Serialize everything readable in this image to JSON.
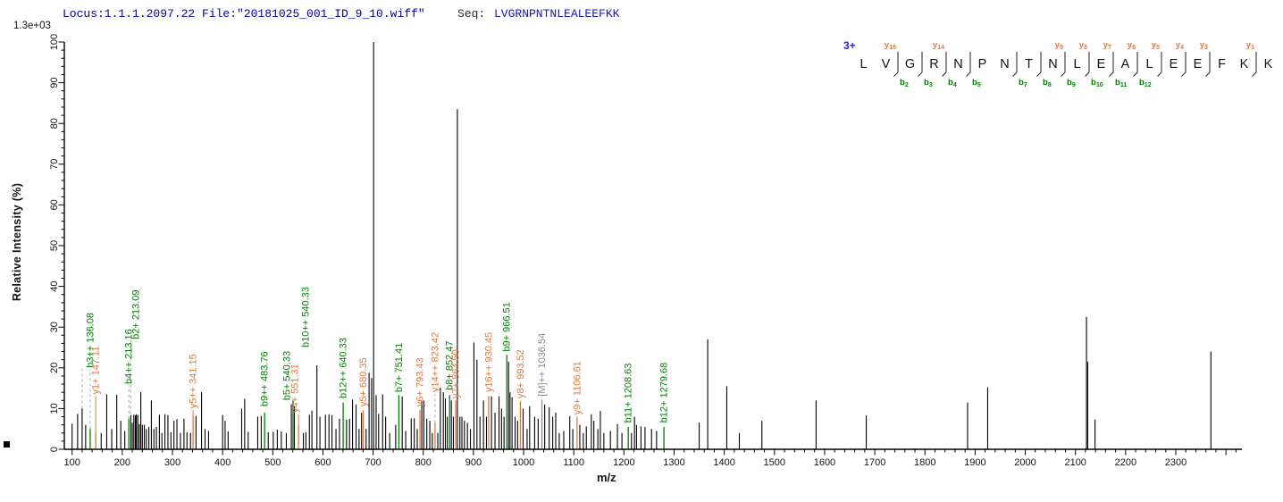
{
  "header": {
    "locus_file": "Locus:1.1.1.2097.22 File:\"20181025_001_ID_9_10.wiff\"",
    "seq_label": "Seq:",
    "seq_value": "LVGRNPNTNLEALEEFKK"
  },
  "scale_note": "1.3e+03",
  "colors": {
    "b_ion": "#008000",
    "y_ion": "#E07840",
    "precursor": "#8C8C8C",
    "peak": "#000000",
    "axis": "#000000",
    "leader_dash": "#ABABAB",
    "charge_blue": "#2222DD",
    "title_blue": "#0000A8"
  },
  "sequence_diagram": {
    "charge": "3+",
    "residues": [
      "L",
      "V",
      "G",
      "R",
      "N",
      "P",
      "N",
      "T",
      "N",
      "L",
      "E",
      "A",
      "L",
      "E",
      "E",
      "F",
      "K",
      "K"
    ],
    "gaps": {
      "2": {
        "y": 16,
        "b": 2
      },
      "3": {
        "b": 3
      },
      "4": {
        "y": 14,
        "b": 4
      },
      "5": {
        "b": 5
      },
      "7": {
        "b": 7
      },
      "8": {
        "b": 8
      },
      "9": {
        "y": 9,
        "b": 9
      },
      "10": {
        "y": 8,
        "b": 10
      },
      "11": {
        "y": 7,
        "b": 11
      },
      "12": {
        "y": 6,
        "b": 12
      },
      "13": {
        "y": 5
      },
      "14": {
        "y": 4
      },
      "15": {
        "y": 3
      },
      "17": {
        "y": 1
      }
    }
  },
  "chart_data": {
    "type": "bar",
    "subtype": "mass-spectrum",
    "xlabel": "m/z",
    "ylabel": "Relative  Intensity (%)",
    "xlim": [
      84,
      2430
    ],
    "ylim": [
      0,
      100
    ],
    "x_major_tick_step": 100,
    "x_minor_tick_step": 20,
    "x_label_range": [
      100,
      2300
    ],
    "y_major_tick_step": 10,
    "y_minor_tick_step": 2,
    "grid": false,
    "peaks": [
      [
        100,
        6.3
      ],
      [
        111,
        8.7
      ],
      [
        120,
        10
      ],
      [
        127,
        6
      ],
      [
        136.08,
        5,
        "b"
      ],
      [
        147.11,
        4.3,
        "y"
      ],
      [
        158,
        4
      ],
      [
        169,
        13.5
      ],
      [
        179,
        5
      ],
      [
        189,
        13.4
      ],
      [
        197,
        7
      ],
      [
        205,
        4.5
      ],
      [
        213.12,
        7.5,
        "b"
      ],
      [
        217,
        8.4
      ],
      [
        220,
        6.5
      ],
      [
        223,
        8.5
      ],
      [
        226,
        8.3
      ],
      [
        228,
        8.6
      ],
      [
        231,
        8.4
      ],
      [
        234,
        6.2
      ],
      [
        237,
        14
      ],
      [
        240,
        6
      ],
      [
        244,
        6
      ],
      [
        248,
        5
      ],
      [
        253,
        5.5
      ],
      [
        258,
        12
      ],
      [
        263,
        5
      ],
      [
        268,
        5.5
      ],
      [
        274,
        8.5
      ],
      [
        279,
        4
      ],
      [
        285,
        8.6
      ],
      [
        291,
        8.4
      ],
      [
        297,
        4.2
      ],
      [
        303,
        7
      ],
      [
        309,
        7.4
      ],
      [
        316,
        4
      ],
      [
        323,
        7.5
      ],
      [
        329,
        4.2
      ],
      [
        336,
        4
      ],
      [
        341.15,
        8.3,
        "y"
      ],
      [
        347,
        8.2
      ],
      [
        358,
        14
      ],
      [
        365,
        5
      ],
      [
        372,
        4.5
      ],
      [
        400,
        8.4
      ],
      [
        405,
        7
      ],
      [
        411,
        4.4
      ],
      [
        438,
        10
      ],
      [
        444,
        12.4
      ],
      [
        451,
        4.3
      ],
      [
        470,
        8
      ],
      [
        477,
        8.2
      ],
      [
        483.76,
        9,
        "b"
      ],
      [
        491,
        4.2
      ],
      [
        501,
        4.3
      ],
      [
        509,
        4.8
      ],
      [
        517,
        4.4
      ],
      [
        527,
        4
      ],
      [
        537,
        11
      ],
      [
        540.33,
        12,
        "b"
      ],
      [
        543,
        10.5
      ],
      [
        551.31,
        6,
        "y"
      ],
      [
        561,
        4
      ],
      [
        566,
        4.2
      ],
      [
        573,
        8.5
      ],
      [
        578,
        9.5
      ],
      [
        588,
        20.6
      ],
      [
        594,
        8
      ],
      [
        605,
        8.5
      ],
      [
        612,
        8.6
      ],
      [
        618,
        8.4
      ],
      [
        626,
        5
      ],
      [
        633,
        7.5
      ],
      [
        640.33,
        11.5,
        "b"
      ],
      [
        647,
        7.3
      ],
      [
        653,
        7.5
      ],
      [
        659,
        12.2
      ],
      [
        666,
        11
      ],
      [
        672,
        5
      ],
      [
        677,
        9
      ],
      [
        680.35,
        9.6,
        "y"
      ],
      [
        686,
        5
      ],
      [
        692,
        18.8
      ],
      [
        697,
        17.5
      ],
      [
        701,
        100
      ],
      [
        706,
        13.3
      ],
      [
        711,
        8.7
      ],
      [
        719,
        13.5
      ],
      [
        725,
        8
      ],
      [
        733,
        4
      ],
      [
        745,
        6
      ],
      [
        751.41,
        13.3,
        "b"
      ],
      [
        758,
        13
      ],
      [
        765,
        4.5
      ],
      [
        776,
        7.6
      ],
      [
        782,
        7.6
      ],
      [
        788,
        5
      ],
      [
        793.43,
        9.6,
        "y"
      ],
      [
        797,
        11.8
      ],
      [
        801,
        12
      ],
      [
        807,
        7.5
      ],
      [
        813,
        7
      ],
      [
        818,
        4
      ],
      [
        823.42,
        6.5,
        "y"
      ],
      [
        829,
        4
      ],
      [
        834,
        15.1
      ],
      [
        840,
        14
      ],
      [
        844,
        12.5
      ],
      [
        848,
        8
      ],
      [
        852.47,
        13.3,
        "b"
      ],
      [
        856,
        12
      ],
      [
        860,
        8
      ],
      [
        864.5,
        12,
        "y"
      ],
      [
        868,
        83.5
      ],
      [
        873,
        8
      ],
      [
        877,
        8
      ],
      [
        882,
        7
      ],
      [
        888,
        6.5
      ],
      [
        894,
        5
      ],
      [
        901,
        26.2
      ],
      [
        907,
        22
      ],
      [
        913,
        8
      ],
      [
        920,
        12
      ],
      [
        926,
        8
      ],
      [
        930.45,
        13.1,
        "y"
      ],
      [
        936,
        13
      ],
      [
        943,
        9
      ],
      [
        951,
        13
      ],
      [
        956,
        10
      ],
      [
        961,
        8
      ],
      [
        966.51,
        23.2,
        "b"
      ],
      [
        970,
        21.5
      ],
      [
        973,
        14
      ],
      [
        977,
        12.8
      ],
      [
        983,
        8
      ],
      [
        988,
        7
      ],
      [
        993.52,
        11.8,
        "y"
      ],
      [
        999,
        10
      ],
      [
        1007,
        5
      ],
      [
        1012,
        10.6
      ],
      [
        1022,
        8
      ],
      [
        1029,
        7.5
      ],
      [
        1036.54,
        12.2,
        "M"
      ],
      [
        1042,
        11
      ],
      [
        1051,
        10.3
      ],
      [
        1058,
        8
      ],
      [
        1064,
        9
      ],
      [
        1071,
        4
      ],
      [
        1080,
        4.5
      ],
      [
        1092,
        8.1
      ],
      [
        1098,
        5
      ],
      [
        1106.61,
        8,
        "y"
      ],
      [
        1112,
        6
      ],
      [
        1119,
        4
      ],
      [
        1125,
        5.6
      ],
      [
        1135,
        8.6
      ],
      [
        1140,
        7
      ],
      [
        1148,
        5
      ],
      [
        1153,
        9.4
      ],
      [
        1160,
        4
      ],
      [
        1173,
        4.5
      ],
      [
        1187,
        6.2
      ],
      [
        1196,
        4
      ],
      [
        1208.63,
        5.5,
        "b"
      ],
      [
        1215,
        4
      ],
      [
        1221,
        8
      ],
      [
        1225,
        6
      ],
      [
        1234,
        5.6
      ],
      [
        1242,
        5.5
      ],
      [
        1255,
        5
      ],
      [
        1265,
        4.5
      ],
      [
        1279.68,
        5.5,
        "b"
      ],
      [
        1350,
        6.6
      ],
      [
        1367,
        27
      ],
      [
        1405,
        15.5
      ],
      [
        1430,
        4
      ],
      [
        1475,
        7
      ],
      [
        1583,
        12
      ],
      [
        1683,
        8.3
      ],
      [
        1885,
        11.5
      ],
      [
        1925,
        15.2
      ],
      [
        2122,
        32.5
      ],
      [
        2124.5,
        21.5
      ],
      [
        2139,
        7.3
      ],
      [
        2370,
        24
      ]
    ],
    "annotations": [
      {
        "mz": 136.08,
        "dx": 0,
        "y": 20,
        "text": "b3++ 136.08",
        "ion": "b",
        "leader": "d",
        "to": 5
      },
      {
        "mz": 147.11,
        "dx": 0,
        "y": 13.5,
        "text": "y1+ 147.11",
        "ion": "y",
        "leader": "s",
        "to": 4.3
      },
      {
        "mz": 213.16,
        "dx": 0,
        "y": 16,
        "text": "b4++ 213.16",
        "ion": "b",
        "leader": "d",
        "to": 7.5
      },
      {
        "mz": 213.09,
        "dx": 8,
        "y": 27,
        "text": "b2+ 213.09",
        "ion": "b"
      },
      {
        "mz": 341.15,
        "dx": 0,
        "y": 10,
        "text": "y5++ 341.15",
        "ion": "y",
        "leader": "s",
        "to": 8.3
      },
      {
        "mz": 483.76,
        "dx": 0,
        "y": 10.5,
        "text": "b9++ 483.76",
        "ion": "b"
      },
      {
        "mz": 540.33,
        "dx": -7,
        "y": 12,
        "text": "b5+ 540.33",
        "ion": "b"
      },
      {
        "mz": 551.31,
        "dx": -4,
        "y": 9,
        "text": "y4+ 551.31",
        "ion": "y",
        "leader": "s",
        "to": 6
      },
      {
        "mz": 540.33,
        "dx": 14,
        "y": 25,
        "text": "b10++ 540.33",
        "ion": "b"
      },
      {
        "mz": 640.33,
        "dx": 0,
        "y": 12.5,
        "text": "b12++ 640.33",
        "ion": "b"
      },
      {
        "mz": 680.35,
        "dx": 0,
        "y": 10.5,
        "text": "y5+ 680.35",
        "ion": "y"
      },
      {
        "mz": 751.41,
        "dx": 0,
        "y": 14,
        "text": "b7+ 751.41",
        "ion": "b"
      },
      {
        "mz": 793.43,
        "dx": 0,
        "y": 10.5,
        "text": "y6+ 793.43",
        "ion": "y"
      },
      {
        "mz": 823.42,
        "dx": 0,
        "y": 14,
        "text": "y14++ 823.42",
        "ion": "y",
        "leader": "d",
        "to": 6.5
      },
      {
        "mz": 852.47,
        "dx": 0,
        "y": 14.5,
        "text": "b8+ 852.47",
        "ion": "b"
      },
      {
        "mz": 864.5,
        "dx": 0,
        "y": 12.5,
        "text": "y7+ 864.50",
        "ion": "y"
      },
      {
        "mz": 930.45,
        "dx": 0,
        "y": 14,
        "text": "y16++ 930.45",
        "ion": "y"
      },
      {
        "mz": 966.51,
        "dx": 0,
        "y": 24,
        "text": "b9+ 966.51",
        "ion": "b"
      },
      {
        "mz": 993.52,
        "dx": 0,
        "y": 12.5,
        "text": "y8+ 993.52",
        "ion": "y"
      },
      {
        "mz": 1036.54,
        "dx": 0,
        "y": 13,
        "text": "[M]++ 1036.54",
        "ion": "M"
      },
      {
        "mz": 1106.61,
        "dx": 0,
        "y": 8.5,
        "text": "y9+ 1106.61",
        "ion": "y"
      },
      {
        "mz": 1208.63,
        "dx": 0,
        "y": 6.5,
        "text": "b11+ 1208.63",
        "ion": "b"
      },
      {
        "mz": 1279.68,
        "dx": 0,
        "y": 6.5,
        "text": "b12+ 1279.68",
        "ion": "b"
      }
    ],
    "extra_dashed_leaders": [
      {
        "mz": 120,
        "from": 10,
        "to": 20
      },
      {
        "mz": 216.8,
        "from": 8.6,
        "to": 27
      }
    ]
  }
}
